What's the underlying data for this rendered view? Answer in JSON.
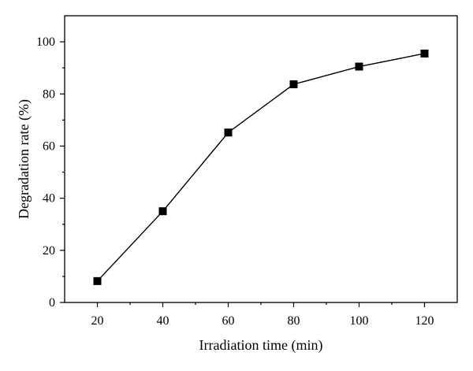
{
  "chart_data": {
    "type": "line",
    "title": "",
    "xlabel": "Irradiation time (min)",
    "ylabel": "Degradation rate (%)",
    "xlim": [
      10,
      130
    ],
    "ylim": [
      0,
      110
    ],
    "xticks": [
      20,
      40,
      60,
      80,
      100,
      120
    ],
    "yticks": [
      0,
      20,
      40,
      60,
      80,
      100
    ],
    "grid": false,
    "marker": "square",
    "colors": {
      "line": "#000000",
      "marker": "#000000",
      "axis": "#000000"
    },
    "series": [
      {
        "x": [
          20,
          40,
          60,
          80,
          100,
          120
        ],
        "values": [
          8.2,
          35,
          65.2,
          83.7,
          90.5,
          95.5
        ]
      }
    ]
  }
}
